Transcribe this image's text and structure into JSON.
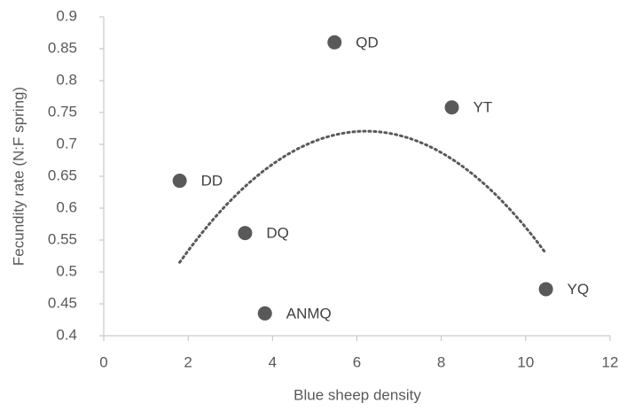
{
  "chart_data": {
    "type": "scatter",
    "x_label": "Blue sheep density",
    "y_label": "Fecundity rate (N:F spring)",
    "x": [
      1.8,
      3.35,
      3.82,
      5.47,
      8.25,
      10.48
    ],
    "values": [
      0.643,
      0.561,
      0.435,
      0.86,
      0.758,
      0.473
    ],
    "point_labels": [
      "DD",
      "DQ",
      "ANMQ",
      "QD",
      "YT",
      "YQ"
    ],
    "color": "#595959",
    "xlim": [
      0,
      12
    ],
    "xticks": [
      0,
      2,
      4,
      6,
      8,
      10,
      12
    ],
    "ylim": [
      0.4,
      0.9
    ],
    "yticks": [
      0.4,
      0.45,
      0.5,
      0.55,
      0.6,
      0.65,
      0.7,
      0.75,
      0.8,
      0.85,
      0.9
    ],
    "grid": false,
    "trendline": "polynomial",
    "trendline_order": 2
  }
}
